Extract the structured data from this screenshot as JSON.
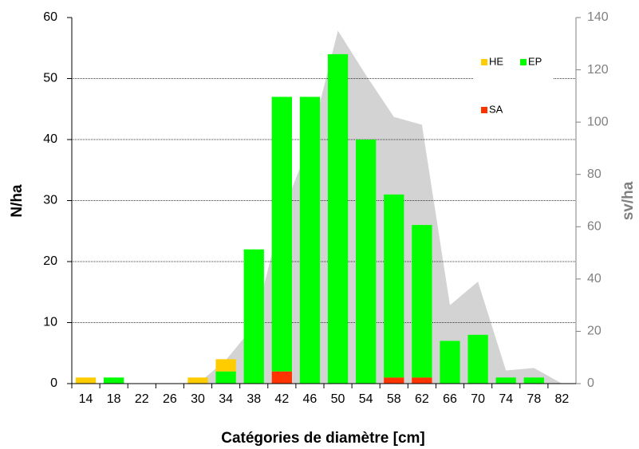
{
  "chart_data": {
    "type": "bar",
    "stacked": true,
    "xlabel": "Catégories de diamètre [cm]",
    "ylabel": "N/ha",
    "y2label": "sv/ha",
    "categories": [
      "14",
      "18",
      "22",
      "26",
      "30",
      "34",
      "38",
      "42",
      "46",
      "50",
      "54",
      "58",
      "62",
      "66",
      "70",
      "74",
      "78",
      "82"
    ],
    "series": [
      {
        "name": "SA",
        "color": "#ff3300",
        "values": [
          0,
          0,
          0,
          0,
          0,
          0,
          0,
          2,
          0,
          0,
          0,
          1,
          1,
          0,
          0,
          0,
          0,
          0
        ]
      },
      {
        "name": "EP",
        "color": "#00ff00",
        "values": [
          0,
          1,
          0,
          0,
          0,
          2,
          22,
          45,
          47,
          54,
          40,
          30,
          25,
          7,
          8,
          1,
          1,
          0
        ]
      },
      {
        "name": "HE",
        "color": "#ffcc00",
        "values": [
          1,
          0,
          0,
          0,
          1,
          2,
          0,
          0,
          0,
          0,
          0,
          0,
          0,
          0,
          0,
          0,
          0,
          0
        ]
      }
    ],
    "area": {
      "color": "#d3d3d3",
      "axis": "y2",
      "values": [
        0,
        0,
        0,
        0,
        0,
        9,
        22,
        65,
        92,
        135,
        118,
        102,
        99,
        30,
        39,
        5,
        6,
        0
      ]
    },
    "ylim": [
      0,
      60
    ],
    "yticks": [
      0,
      10,
      20,
      30,
      40,
      50,
      60
    ],
    "y2lim": [
      0,
      140
    ],
    "y2ticks": [
      0,
      20,
      40,
      60,
      80,
      100,
      120,
      140
    ],
    "grid": true
  }
}
